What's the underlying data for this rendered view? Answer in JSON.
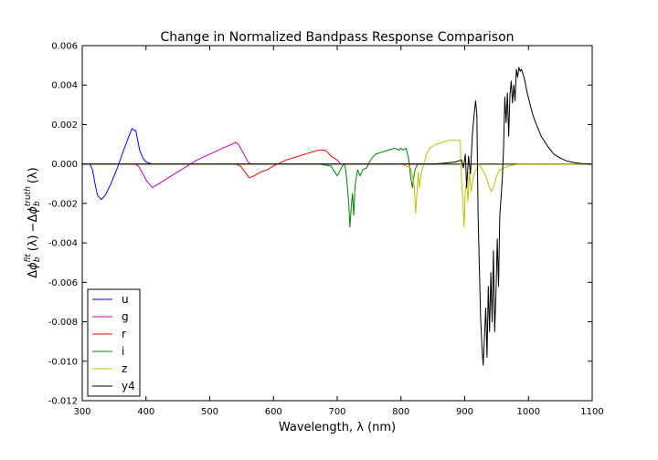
{
  "chart_data": {
    "type": "line",
    "title": "Change in Normalized Bandpass Response Comparison",
    "xlabel": "Wavelength, λ (nm)",
    "ylabel": "Δφ_b^fit (λ) − Δφ_b^truth (λ)",
    "ylabel_parts": {
      "delta": "Δ",
      "phi": "ϕ",
      "sub": "b",
      "sup_fit": "fit",
      "arg": "(λ)",
      "minus": "−",
      "sup_truth": "truth"
    },
    "xlim": [
      300,
      1100
    ],
    "ylim": [
      -0.012,
      0.006
    ],
    "xticks": [
      "300",
      "400",
      "500",
      "600",
      "700",
      "800",
      "900",
      "1000",
      "1100"
    ],
    "yticks": [
      "0.006",
      "0.004",
      "0.002",
      "0.000",
      "-0.002",
      "-0.004",
      "-0.006",
      "-0.008",
      "-0.010",
      "-0.012"
    ],
    "grid": false,
    "legend": "lower-left",
    "series": [
      {
        "name": "u",
        "color": "#0000ff",
        "x": [
          300,
          312,
          316,
          320,
          324,
          330,
          336,
          345,
          355,
          365,
          372,
          378,
          381,
          384,
          387,
          390,
          395,
          400,
          410,
          420,
          1100
        ],
        "y": [
          0,
          0,
          -0.0003,
          -0.001,
          -0.0016,
          -0.0018,
          -0.0016,
          -0.001,
          -0.0002,
          0.0007,
          0.0013,
          0.0018,
          0.0017,
          0.0017,
          0.0012,
          0.0007,
          0.0003,
          0.0001,
          0,
          0,
          0
        ]
      },
      {
        "name": "g",
        "color": "#bf00bf",
        "x": [
          300,
          382,
          388,
          395,
          402,
          410,
          420,
          435,
          450,
          465,
          480,
          500,
          520,
          535,
          540,
          545,
          552,
          560,
          565,
          1100
        ],
        "y": [
          0,
          0,
          -0.0001,
          -0.0005,
          -0.0009,
          -0.0012,
          -0.001,
          -0.0007,
          -0.0004,
          -0.0001,
          0.0002,
          0.0005,
          0.0008,
          0.001,
          0.0011,
          0.001,
          0.0006,
          0.0001,
          0,
          0
        ]
      },
      {
        "name": "r",
        "color": "#ff0000",
        "x": [
          300,
          540,
          548,
          555,
          562,
          570,
          580,
          590,
          600,
          620,
          640,
          660,
          670,
          680,
          685,
          690,
          695,
          700,
          705,
          1100
        ],
        "y": [
          0,
          0,
          -0.0001,
          -0.0004,
          -0.0007,
          -0.0006,
          -0.0004,
          -0.0003,
          -0.0001,
          0.0002,
          0.0004,
          0.0006,
          0.0007,
          0.0007,
          0.0006,
          0.0004,
          0.0003,
          0.0002,
          0,
          0
        ]
      },
      {
        "name": "i",
        "color": "#008000",
        "x": [
          300,
          670,
          690,
          700,
          705,
          708,
          712,
          715,
          718,
          720,
          722,
          724,
          726,
          728,
          732,
          736,
          740,
          746,
          752,
          760,
          770,
          780,
          790,
          797,
          800,
          804,
          808,
          812,
          815,
          818,
          820,
          822,
          826,
          1100
        ],
        "y": [
          0,
          0,
          -0.0001,
          -0.0006,
          -0.0003,
          -0.0001,
          0,
          -0.0008,
          -0.002,
          -0.0032,
          -0.0022,
          -0.0015,
          -0.0026,
          -0.0011,
          -0.0003,
          -0.0006,
          -0.0003,
          -0.0002,
          0.0002,
          0.0005,
          0.0006,
          0.0007,
          0.0008,
          0.0007,
          0.0008,
          0.0007,
          0.0008,
          0.0003,
          -0.0006,
          -0.0012,
          -0.0007,
          -0.0003,
          0,
          0
        ]
      },
      {
        "name": "z",
        "color": "#bfbf00",
        "x": [
          300,
          800,
          815,
          818,
          821,
          823,
          825,
          827,
          829,
          832,
          835,
          840,
          845,
          855,
          865,
          875,
          885,
          893,
          895,
          897,
          899,
          901,
          903,
          905,
          907,
          910,
          913,
          916,
          919,
          922,
          926,
          930,
          934,
          938,
          942,
          946,
          950,
          955,
          962,
          970,
          985,
          1100
        ],
        "y": [
          0,
          0,
          -0.0002,
          -0.0006,
          -0.0012,
          -0.0025,
          -0.0015,
          -0.0004,
          -0.0012,
          -0.0004,
          -0.0001,
          0.0005,
          0.0008,
          0.001,
          0.0011,
          0.0012,
          0.0012,
          0.0012,
          -0.0009,
          -0.0017,
          -0.0032,
          -0.0013,
          -0.0009,
          -0.0019,
          -0.0004,
          -0.0014,
          -0.0007,
          -0.0004,
          -0.0002,
          0,
          -0.0002,
          -0.0004,
          -0.0007,
          -0.0011,
          -0.0014,
          -0.0011,
          -0.0006,
          -0.0003,
          -0.0002,
          -0.0001,
          0,
          0
        ]
      },
      {
        "name": "y4",
        "color": "#000000",
        "x": [
          300,
          850,
          870,
          885,
          895,
          898,
          901,
          903,
          906,
          909,
          912,
          915,
          917,
          919,
          921,
          923,
          925,
          927,
          929,
          931,
          933,
          935,
          937,
          939,
          941,
          943,
          945,
          947,
          949,
          951,
          953,
          955,
          957,
          959,
          961,
          963,
          965,
          967,
          969,
          971,
          973,
          975,
          977,
          979,
          981,
          983,
          985,
          987,
          989,
          991,
          993,
          995,
          998,
          1002,
          1006,
          1010,
          1015,
          1020,
          1030,
          1040,
          1050,
          1060,
          1070,
          1080,
          1090,
          1100
        ],
        "y": [
          0,
          0,
          5e-05,
          0.0001,
          0.0002,
          -0.0002,
          0.0005,
          -0.0012,
          0.0004,
          -0.0005,
          0.0015,
          0.0026,
          0.0032,
          0.0025,
          -0.0025,
          -0.0052,
          -0.0078,
          -0.0092,
          -0.0102,
          -0.0088,
          -0.0073,
          -0.0098,
          -0.0062,
          -0.0085,
          -0.0055,
          -0.008,
          -0.0044,
          -0.0085,
          -0.0066,
          -0.0038,
          -0.0062,
          -0.0026,
          -0.0017,
          -0.0007,
          0.0008,
          0.0034,
          0.0021,
          0.0036,
          0.0014,
          0.0035,
          0.0042,
          0.0031,
          0.004,
          0.0032,
          0.0048,
          0.0044,
          0.0049,
          0.0047,
          0.0048,
          0.0046,
          0.0044,
          0.0041,
          0.0036,
          0.0031,
          0.0026,
          0.0022,
          0.0018,
          0.0014,
          0.0009,
          0.0005,
          0.0003,
          0.00015,
          8e-05,
          3e-05,
          1e-05,
          0
        ]
      }
    ]
  }
}
